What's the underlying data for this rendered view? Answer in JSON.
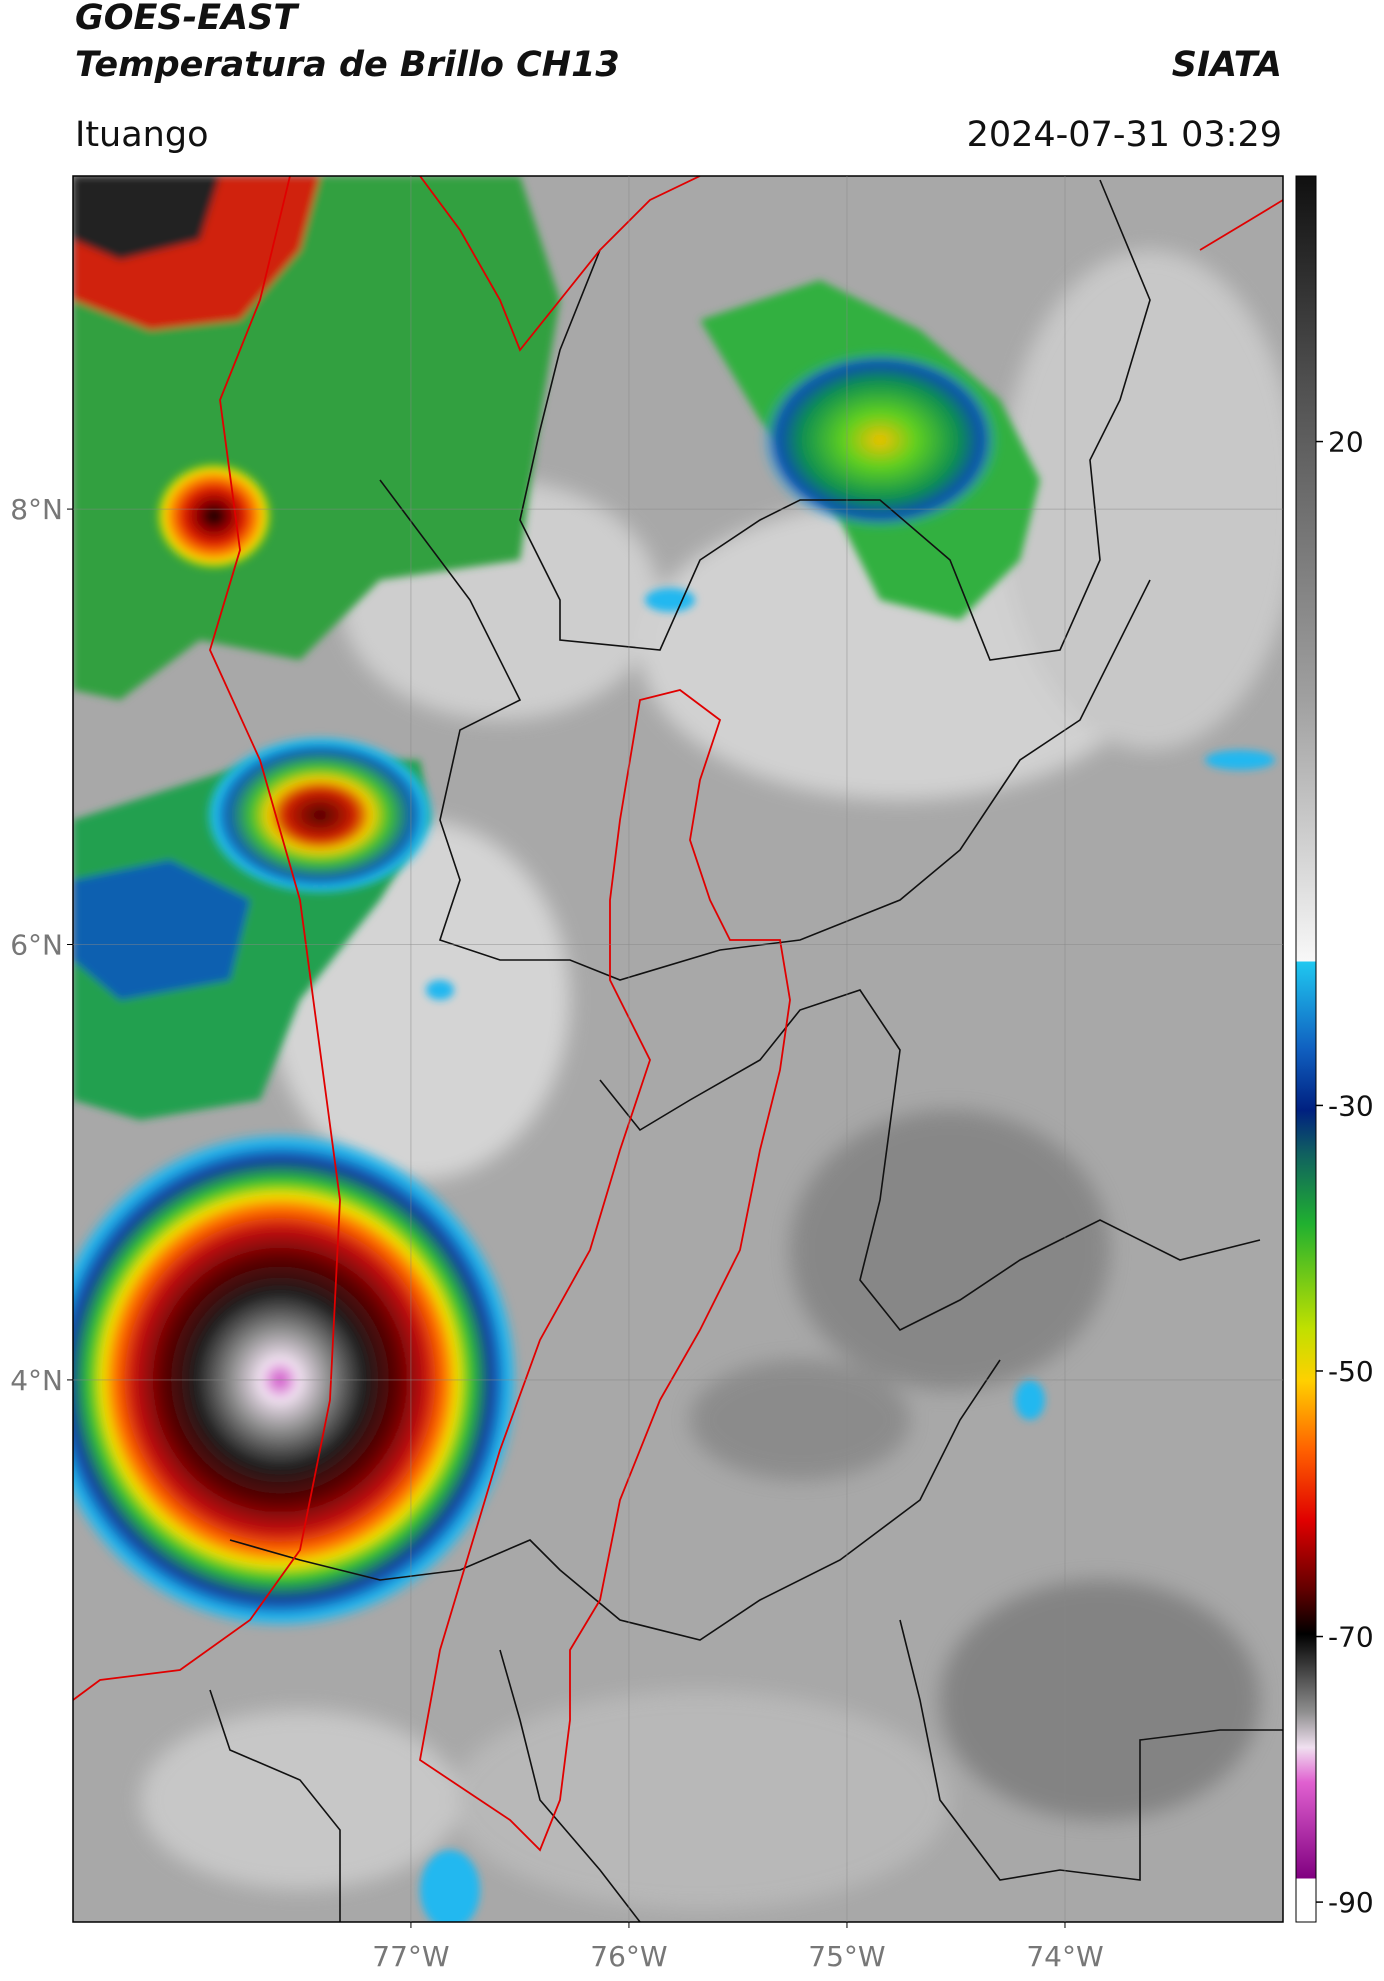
{
  "header": {
    "title": "GOES-EAST",
    "subtitle": "Temperatura de Brillo CH13",
    "source": "SIATA",
    "region": "Ituango",
    "datetime": "2024-07-31 03:29"
  },
  "chart_data": {
    "type": "map",
    "xlim": [
      -78.55,
      -73.0
    ],
    "ylim": [
      1.51,
      9.53
    ],
    "xticks": [
      {
        "value": -77,
        "label": "77°W"
      },
      {
        "value": -76,
        "label": "76°W"
      },
      {
        "value": -75,
        "label": "75°W"
      },
      {
        "value": -74,
        "label": "74°W"
      }
    ],
    "yticks": [
      {
        "value": 8,
        "label": "8°N"
      },
      {
        "value": 6,
        "label": "6°N"
      },
      {
        "value": 4,
        "label": "4°N"
      }
    ],
    "grid": true,
    "colorbar": {
      "lim": [
        -91.5,
        40
      ],
      "ticks": [
        20,
        -30,
        -50,
        -70,
        -90
      ]
    }
  }
}
